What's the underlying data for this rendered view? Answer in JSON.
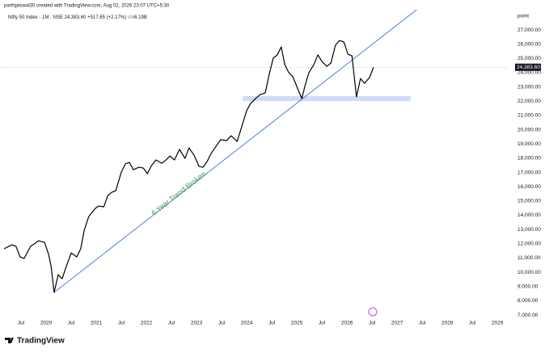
{
  "header": {
    "credit": "parthjaiswal30 created with TradingView.com, Aug 02, 2026 23:07 UTC+5:30",
    "symbol": "Nifty 50 Index · 1M · NSE",
    "price": "24,383.60",
    "change": "+517.85 (+2.17%)",
    "volume_label": "Vol",
    "volume": "6.19B"
  },
  "logo": "TradingView",
  "chart_data": {
    "type": "line",
    "color": "#000000",
    "ylabel": "point",
    "x": [
      2019.16,
      2019.32,
      2019.4,
      2019.48,
      2019.56,
      2019.69,
      2019.85,
      2019.97,
      2020.05,
      2020.1,
      2020.16,
      2020.24,
      2020.32,
      2020.4,
      2020.5,
      2020.61,
      2020.69,
      2020.76,
      2020.85,
      2020.98,
      2021.05,
      2021.15,
      2021.23,
      2021.31,
      2021.39,
      2021.5,
      2021.58,
      2021.66,
      2021.74,
      2021.85,
      2021.94,
      2022.02,
      2022.1,
      2022.19,
      2022.31,
      2022.39,
      2022.47,
      2022.56,
      2022.66,
      2022.77,
      2022.85,
      2022.95,
      2023.05,
      2023.13,
      2023.21,
      2023.29,
      2023.4,
      2023.48,
      2023.6,
      2023.69,
      2023.81,
      2023.9,
      2024.0,
      2024.08,
      2024.18,
      2024.27,
      2024.37,
      2024.45,
      2024.53,
      2024.61,
      2024.69,
      2024.76,
      2024.84,
      2024.92,
      2025.02,
      2025.1,
      2025.16,
      2025.24,
      2025.34,
      2025.42,
      2025.5,
      2025.6,
      2025.68,
      2025.77,
      2025.85,
      2025.94,
      2026.02,
      2026.1,
      2026.19,
      2026.27,
      2026.35,
      2026.45,
      2026.53
    ],
    "values": [
      11650,
      11930,
      11820,
      11080,
      10970,
      11820,
      12210,
      12100,
      11250,
      10400,
      8590,
      9830,
      9550,
      10400,
      11360,
      11080,
      11650,
      12950,
      13910,
      14480,
      14650,
      14590,
      15390,
      15610,
      15730,
      17030,
      17600,
      17710,
      17200,
      17370,
      17310,
      16920,
      17480,
      17880,
      17650,
      17880,
      18160,
      17880,
      18620,
      17990,
      18730,
      18220,
      17430,
      17370,
      17770,
      18330,
      18900,
      19300,
      19240,
      19580,
      19180,
      20200,
      21340,
      21850,
      22190,
      22470,
      22580,
      23890,
      25020,
      25250,
      25810,
      24570,
      24000,
      23720,
      22870,
      22190,
      23040,
      24000,
      24570,
      25250,
      24790,
      24450,
      24680,
      25920,
      26260,
      26150,
      25300,
      25190,
      22300,
      23600,
      23260,
      23660,
      24383.6
    ],
    "price_label": {
      "value": 24383.6,
      "label": "24,383.60"
    },
    "trendline": {
      "x": [
        2020.16,
        2027.39
      ],
      "values": [
        8590,
        28420
      ],
      "color": "#4a7fd8"
    },
    "support_zone": {
      "x": [
        2023.92,
        2027.27
      ],
      "y": [
        22010,
        22360
      ],
      "color": "#cfdcf8"
    },
    "annotation": {
      "text": "6 Year Trend Broken",
      "color": "#43a047"
    },
    "xlim": [
      2019.08,
      2029.24
    ],
    "ylim": [
      6720,
      29100
    ],
    "xticks": [
      {
        "value": 2019.5,
        "label": "Jul"
      },
      2020,
      {
        "value": 2020.5,
        "label": "Jul"
      },
      2021,
      {
        "value": 2021.5,
        "label": "Jul"
      },
      2022,
      {
        "value": 2022.5,
        "label": "Jul"
      },
      2023,
      {
        "value": 2023.5,
        "label": "Jul"
      },
      2024,
      {
        "value": 2024.5,
        "label": "Jul"
      },
      2025,
      {
        "value": 2025.5,
        "label": "Jul"
      },
      2026,
      {
        "value": 2026.5,
        "label": "Jul"
      },
      2027,
      {
        "value": 2027.5,
        "label": "Jul"
      },
      2028,
      {
        "value": 2028.5,
        "label": "Jul"
      },
      2029
    ],
    "yticks": [
      {
        "value": 7000,
        "label": "7,000.00"
      },
      {
        "value": 8000,
        "label": "8,000.00"
      },
      {
        "value": 9000,
        "label": "9,000.00"
      },
      {
        "value": 10000,
        "label": "10,000.00"
      },
      {
        "value": 11000,
        "label": "11,000.00"
      },
      {
        "value": 12000,
        "label": "12,000.00"
      },
      {
        "value": 13000,
        "label": "13,000.00"
      },
      {
        "value": 14000,
        "label": "14,000.00"
      },
      {
        "value": 15000,
        "label": "15,000.00"
      },
      {
        "value": 16000,
        "label": "16,000.00"
      },
      {
        "value": 17000,
        "label": "17,000.00"
      },
      {
        "value": 18000,
        "label": "18,000.00"
      },
      {
        "value": 19000,
        "label": "19,000.00"
      },
      {
        "value": 20000,
        "label": "20,000.00"
      },
      {
        "value": 21000,
        "label": "21,000.00"
      },
      {
        "value": 22000,
        "label": "22,000.00"
      },
      {
        "value": 23000,
        "label": "23,000.00"
      },
      {
        "value": 24000,
        "label": "24,000.00"
      },
      {
        "value": 25000,
        "label": "25,000.00"
      },
      {
        "value": 26000,
        "label": "26,000.00"
      },
      {
        "value": 27000,
        "label": "27,000.00"
      }
    ]
  }
}
